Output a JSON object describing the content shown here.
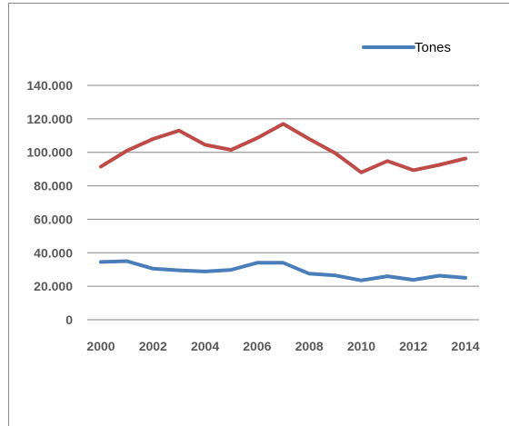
{
  "chart_data": {
    "type": "line",
    "title": "",
    "xlabel": "",
    "ylabel": "",
    "x": [
      2000,
      2001,
      2002,
      2003,
      2004,
      2005,
      2006,
      2007,
      2008,
      2009,
      2010,
      2011,
      2012,
      2013,
      2014
    ],
    "x_tick_labels": [
      "2000",
      "2002",
      "2004",
      "2006",
      "2008",
      "2010",
      "2012",
      "2014"
    ],
    "ylim": [
      0,
      140000
    ],
    "y_tick_labels": [
      "0",
      "20.000",
      "40.000",
      "60.000",
      "80.000",
      "100.000",
      "120.000",
      "140.000"
    ],
    "grid": "horizontal",
    "legend_position": "top-right",
    "series": [
      {
        "name": "Tones",
        "color": "#4a7ebb",
        "values": [
          34500,
          35000,
          30500,
          29500,
          28800,
          29800,
          34000,
          34000,
          27500,
          26500,
          23500,
          26000,
          23800,
          26300,
          25000
        ]
      },
      {
        "color": "#be4b48",
        "values": [
          91500,
          101000,
          108000,
          113000,
          104500,
          101500,
          108500,
          117000,
          108000,
          99500,
          88000,
          94800,
          89300,
          92500,
          96300
        ]
      }
    ]
  }
}
